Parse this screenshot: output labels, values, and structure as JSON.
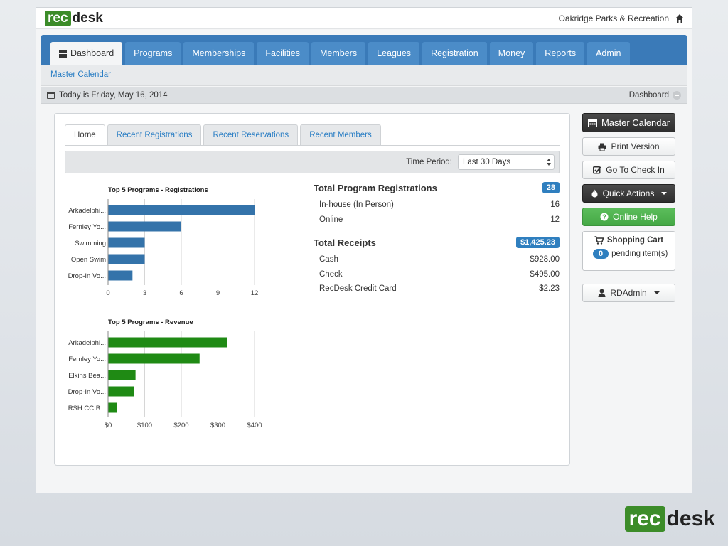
{
  "brand": {
    "rec": "rec",
    "desk": "desk"
  },
  "org_name": "Oakridge Parks & Recreation",
  "nav": [
    {
      "label": "Dashboard",
      "active": true
    },
    {
      "label": "Programs"
    },
    {
      "label": "Memberships"
    },
    {
      "label": "Facilities"
    },
    {
      "label": "Members"
    },
    {
      "label": "Leagues"
    },
    {
      "label": "Registration"
    },
    {
      "label": "Money"
    },
    {
      "label": "Reports"
    },
    {
      "label": "Admin"
    }
  ],
  "subnav": {
    "master_calendar": "Master Calendar"
  },
  "datebar": {
    "today": "Today is Friday, May 16, 2014",
    "crumb": "Dashboard"
  },
  "inner_tabs": [
    {
      "label": "Home",
      "active": true
    },
    {
      "label": "Recent Registrations"
    },
    {
      "label": "Recent Reservations"
    },
    {
      "label": "Recent Members"
    }
  ],
  "period": {
    "label": "Time Period:",
    "value": "Last 30 Days"
  },
  "chart_data": [
    {
      "type": "bar",
      "orientation": "horizontal",
      "title": "Top 5 Programs - Registrations",
      "categories": [
        "Arkadelphi...",
        "Fernley Yo...",
        "Swimming",
        "Open Swim",
        "Drop-In Vo..."
      ],
      "values": [
        12,
        6,
        3,
        3,
        2
      ],
      "xlim": [
        0,
        12
      ],
      "ticks": [
        "0",
        "3",
        "6",
        "9",
        "12"
      ],
      "tick_values": [
        0,
        3,
        6,
        9,
        12
      ],
      "color": "#3473aa"
    },
    {
      "type": "bar",
      "orientation": "horizontal",
      "title": "Top 5 Programs - Revenue",
      "categories": [
        "Arkadelphi...",
        "Fernley Yo...",
        "Elkins Bea...",
        "Drop-In Vo...",
        "RSH CC B..."
      ],
      "values": [
        325,
        250,
        75,
        70,
        25
      ],
      "xlim": [
        0,
        400
      ],
      "ticks": [
        "$0",
        "$100",
        "$200",
        "$300",
        "$400"
      ],
      "tick_values": [
        0,
        100,
        200,
        300,
        400
      ],
      "color": "#1f8a14"
    }
  ],
  "stats": {
    "registrations": {
      "label": "Total Program Registrations",
      "total": "28",
      "rows": [
        {
          "label": "In-house (In Person)",
          "value": "16"
        },
        {
          "label": "Online",
          "value": "12"
        }
      ]
    },
    "receipts": {
      "label": "Total Receipts",
      "total": "$1,425.23",
      "rows": [
        {
          "label": "Cash",
          "value": "$928.00"
        },
        {
          "label": "Check",
          "value": "$495.00"
        },
        {
          "label": "RecDesk Credit Card",
          "value": "$2.23"
        }
      ]
    }
  },
  "sidebar": {
    "master_calendar": "Master Calendar",
    "print_version": "Print Version",
    "check_in": "Go To Check In",
    "quick_actions": "Quick Actions",
    "online_help": "Online Help",
    "cart_title": "Shopping Cart",
    "cart_count": "0",
    "cart_pending": "pending item(s)",
    "user": "RDAdmin"
  },
  "colors": {
    "nav_blue": "#3a7ab8",
    "brand_green": "#3c8c29",
    "reg_bar": "#3473aa",
    "rev_bar": "#1f8a14"
  }
}
